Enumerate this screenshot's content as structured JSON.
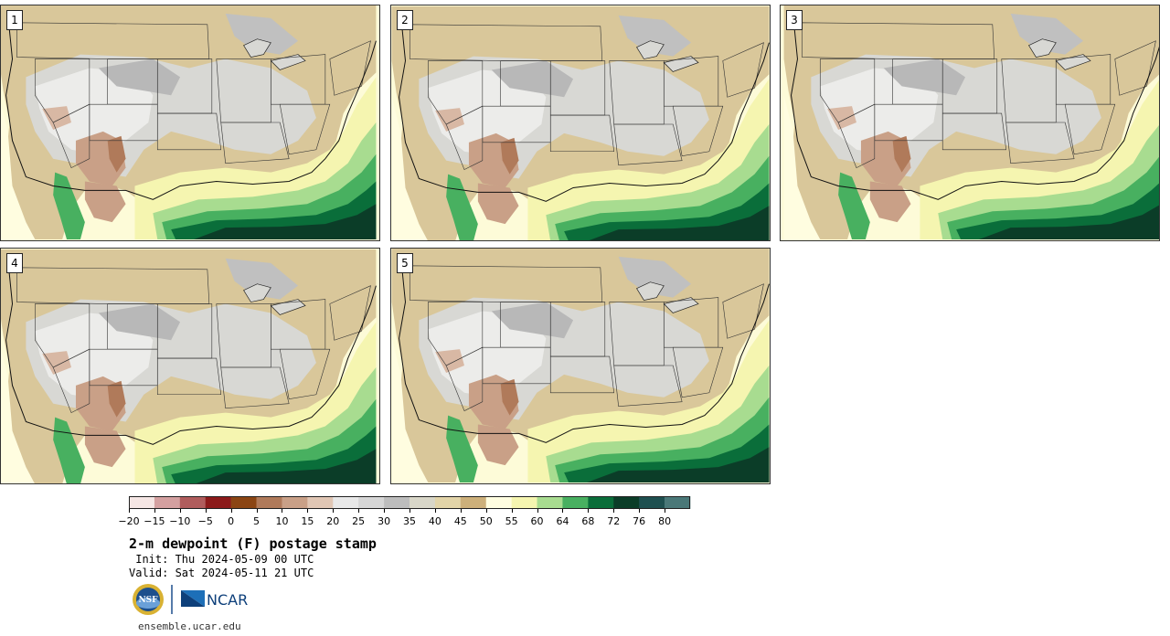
{
  "panels": [
    {
      "label": "1"
    },
    {
      "label": "2"
    },
    {
      "label": "3"
    },
    {
      "label": "4"
    },
    {
      "label": "5"
    }
  ],
  "colorbar": {
    "colors": [
      "#f5e6e4",
      "#d4a0a0",
      "#b05c5c",
      "#8c1a1a",
      "#8b4513",
      "#b07a5a",
      "#c9a087",
      "#e0c6b4",
      "#e8e8e8",
      "#d6d6d6",
      "#bdbdbd",
      "#d8d6c8",
      "#e2d4a8",
      "#cdb07a",
      "#fffde0",
      "#f5f5b0",
      "#a8dc90",
      "#48b060",
      "#0a6e3a",
      "#0b3d28",
      "#1e5050",
      "#4a7878"
    ],
    "tick_labels": [
      "−20",
      "−15",
      "−10",
      "−5",
      "0",
      "5",
      "10",
      "15",
      "20",
      "25",
      "30",
      "35",
      "40",
      "45",
      "50",
      "55",
      "60",
      "64",
      "68",
      "72",
      "76",
      "80"
    ]
  },
  "title": "2-m dewpoint (F) postage stamp",
  "init": " Init: Thu 2024-05-09 00 UTC",
  "valid": "Valid: Sat 2024-05-11 21 UTC",
  "logos": {
    "nsf": "NSF",
    "ncar": "NCAR"
  },
  "website": "ensemble.ucar.edu"
}
